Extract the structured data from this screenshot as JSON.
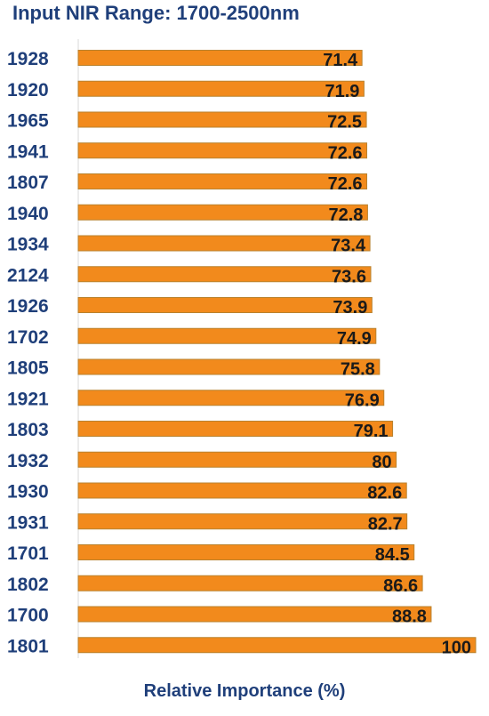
{
  "chart_data": {
    "type": "bar",
    "orientation": "horizontal",
    "title": "Input NIR Range: 1700-2500nm",
    "xlabel": "Relative Importance (%)",
    "ylabel": "",
    "categories": [
      "1928",
      "1920",
      "1965",
      "1941",
      "1807",
      "1940",
      "1934",
      "2124",
      "1926",
      "1702",
      "1805",
      "1921",
      "1803",
      "1932",
      "1930",
      "1931",
      "1701",
      "1802",
      "1700",
      "1801"
    ],
    "values": [
      71.4,
      71.9,
      72.5,
      72.6,
      72.6,
      72.8,
      73.4,
      73.6,
      73.9,
      74.9,
      75.8,
      76.9,
      79.1,
      80,
      82.6,
      82.7,
      84.5,
      86.6,
      88.8,
      100
    ],
    "value_labels": [
      "71.4",
      "71.9",
      "72.5",
      "72.6",
      "72.6",
      "72.8",
      "73.4",
      "73.6",
      "73.9",
      "74.9",
      "75.8",
      "76.9",
      "79.1",
      "80",
      "82.6",
      "82.7",
      "84.5",
      "86.6",
      "88.8",
      "100"
    ],
    "xlim": [
      0,
      100
    ],
    "grid": false,
    "legend": "none",
    "colors": {
      "bar": "#f28a1c",
      "bar_edge": "#b9822e",
      "title": "#1f3f7a",
      "labels": "#1f3f7a"
    }
  }
}
